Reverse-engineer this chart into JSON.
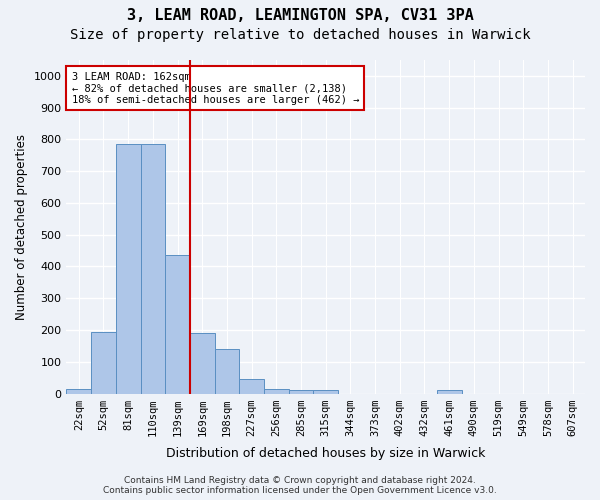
{
  "title1": "3, LEAM ROAD, LEAMINGTON SPA, CV31 3PA",
  "title2": "Size of property relative to detached houses in Warwick",
  "xlabel": "Distribution of detached houses by size in Warwick",
  "ylabel": "Number of detached properties",
  "bin_labels": [
    "22sqm",
    "52sqm",
    "81sqm",
    "110sqm",
    "139sqm",
    "169sqm",
    "198sqm",
    "227sqm",
    "256sqm",
    "285sqm",
    "315sqm",
    "344sqm",
    "373sqm",
    "402sqm",
    "432sqm",
    "461sqm",
    "490sqm",
    "519sqm",
    "549sqm",
    "578sqm",
    "607sqm"
  ],
  "bar_values": [
    15,
    195,
    785,
    785,
    435,
    190,
    140,
    45,
    15,
    12,
    12,
    0,
    0,
    0,
    0,
    10,
    0,
    0,
    0,
    0,
    0
  ],
  "bar_color": "#aec6e8",
  "bar_edge_color": "#5a8fc2",
  "vline_x": 4.5,
  "vline_color": "#cc0000",
  "annotation_text": "3 LEAM ROAD: 162sqm\n← 82% of detached houses are smaller (2,138)\n18% of semi-detached houses are larger (462) →",
  "annotation_box_color": "#ffffff",
  "annotation_box_edge": "#cc0000",
  "ylim": [
    0,
    1050
  ],
  "yticks": [
    0,
    100,
    200,
    300,
    400,
    500,
    600,
    700,
    800,
    900,
    1000
  ],
  "footer_line1": "Contains HM Land Registry data © Crown copyright and database right 2024.",
  "footer_line2": "Contains public sector information licensed under the Open Government Licence v3.0.",
  "bg_color": "#eef2f8",
  "grid_color": "#ffffff",
  "title1_fontsize": 11,
  "title2_fontsize": 10,
  "tick_fontsize": 7.5
}
